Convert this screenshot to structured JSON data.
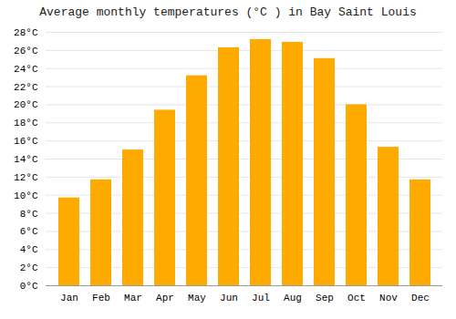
{
  "chart_data": {
    "type": "bar",
    "title": "Average monthly temperatures (°C ) in Bay Saint Louis",
    "categories": [
      "Jan",
      "Feb",
      "Mar",
      "Apr",
      "May",
      "Jun",
      "Jul",
      "Aug",
      "Sep",
      "Oct",
      "Nov",
      "Dec"
    ],
    "values": [
      9.7,
      11.7,
      15.0,
      19.4,
      23.2,
      26.3,
      27.2,
      26.9,
      25.1,
      20.0,
      15.3,
      11.7
    ],
    "color": "#FFAA00",
    "ylim": [
      0,
      28
    ],
    "yticks": [
      {
        "value": 0,
        "label": "0°C"
      },
      {
        "value": 2,
        "label": "2°C"
      },
      {
        "value": 4,
        "label": "4°C"
      },
      {
        "value": 6,
        "label": "6°C"
      },
      {
        "value": 8,
        "label": "8°C"
      },
      {
        "value": 10,
        "label": "10°C"
      },
      {
        "value": 12,
        "label": "12°C"
      },
      {
        "value": 14,
        "label": "14°C"
      },
      {
        "value": 16,
        "label": "16°C"
      },
      {
        "value": 18,
        "label": "18°C"
      },
      {
        "value": 20,
        "label": "20°C"
      },
      {
        "value": 22,
        "label": "22°C"
      },
      {
        "value": 24,
        "label": "24°C"
      },
      {
        "value": 26,
        "label": "26°C"
      },
      {
        "value": 28,
        "label": "28°C"
      }
    ],
    "grid": true
  }
}
